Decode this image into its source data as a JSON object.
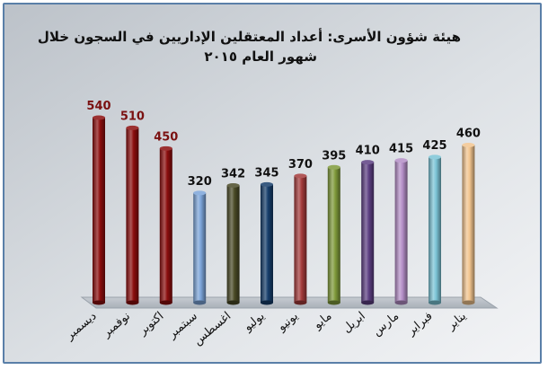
{
  "chart_data": {
    "type": "bar",
    "title": "هيئة شؤون الأسرى: أعداد المعتقلين الإداريين في السجون خلال",
    "subtitle": "شهور العام ٢٠١٥",
    "categories": [
      "ديسمبر",
      "نوفمبر",
      "اكتوبر",
      "سبتمبر",
      "اغسطس",
      "يوليو",
      "يونيو",
      "مايو",
      "ابريل",
      "مارس",
      "فبراير",
      "يناير"
    ],
    "values": [
      540,
      510,
      450,
      320,
      342,
      345,
      370,
      395,
      410,
      415,
      425,
      460
    ],
    "ylim": [
      0,
      560
    ],
    "grid": false,
    "legend": "none",
    "colors": [
      "#8b0d0d",
      "#8b0d0d",
      "#8b0d0d",
      "#7ba4d9",
      "#4a4a26",
      "#163e6b",
      "#a33a3a",
      "#7f9a3a",
      "#5d3f82",
      "#b48ec7",
      "#7cc4d6",
      "#f2c48e"
    ],
    "label_colors": [
      "#7a1010",
      "#7a1010",
      "#7a1010",
      "#111111",
      "#111111",
      "#111111",
      "#111111",
      "#111111",
      "#111111",
      "#111111",
      "#111111",
      "#111111"
    ]
  }
}
